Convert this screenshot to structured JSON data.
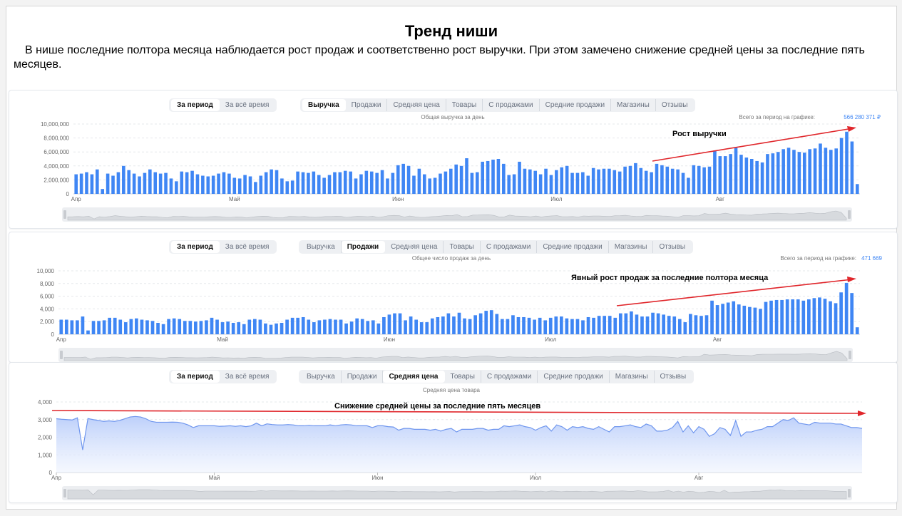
{
  "page": {
    "heading": "Тренд ниши",
    "intro": "В нише последние полтора месяца наблюдается рост продаж и соответственно рост выручки. При этом замечено снижение средней цены за последние пять месяцев."
  },
  "tabs_period": [
    "За период",
    "За всё время"
  ],
  "tabs_metrics": [
    "Выручка",
    "Продажи",
    "Средняя цена",
    "Товары",
    "С продажами",
    "Средние продажи",
    "Магазины",
    "Отзывы"
  ],
  "colors": {
    "bar": "#3f86f4",
    "line": "#6f96ee",
    "area": "#c9d8fb",
    "arrow": "#e0262b",
    "total": "#3f86f4"
  },
  "charts": [
    {
      "active_metric": "Выручка",
      "subtitle": "Общая выручка за день",
      "total_label": "Всего за период на графике:",
      "total_value": "566 280 371 ₽",
      "annotation": "Рост выручки"
    },
    {
      "active_metric": "Продажи",
      "subtitle": "Общее число продаж за день",
      "total_label": "Всего за период на графике:",
      "total_value": "471 669",
      "annotation": "Явный рост продаж за последние полтора месяца"
    },
    {
      "active_metric": "Средняя цена",
      "subtitle": "Средняя цена товара",
      "annotation": "Снижение средней цены за последние пять месяцев"
    }
  ],
  "chart_data": [
    {
      "type": "bar",
      "ylim": [
        0,
        10000000
      ],
      "yticks": [
        0,
        2000000,
        4000000,
        6000000,
        8000000,
        10000000
      ],
      "ytick_labels": [
        "0",
        "2,000,000",
        "4,000,000",
        "6,000,000",
        "8,000,000",
        "10,000,000"
      ],
      "xtick_labels": [
        "Апр",
        "Май",
        "Июн",
        "Июл",
        "Авг"
      ],
      "xtick_days": [
        0,
        30,
        61,
        91,
        122
      ],
      "values": [
        2800000,
        2900000,
        3100000,
        2800000,
        3500000,
        700000,
        2900000,
        2600000,
        3100000,
        4000000,
        3400000,
        2900000,
        2500000,
        3000000,
        3500000,
        3100000,
        2900000,
        3000000,
        2200000,
        1800000,
        3200000,
        3100000,
        3300000,
        2800000,
        2600000,
        2500000,
        2600000,
        2900000,
        3100000,
        2900000,
        2300000,
        2200000,
        2700000,
        2500000,
        1700000,
        2600000,
        3100000,
        3500000,
        3400000,
        2200000,
        1800000,
        1900000,
        3200000,
        3100000,
        3000000,
        3200000,
        2700000,
        2300000,
        2700000,
        3100000,
        3100000,
        3300000,
        3200000,
        2200000,
        2800000,
        3300000,
        3200000,
        3000000,
        3400000,
        2200000,
        3000000,
        4100000,
        4300000,
        4000000,
        2600000,
        3600000,
        2800000,
        2200000,
        2300000,
        2900000,
        3200000,
        3600000,
        4200000,
        4000000,
        5100000,
        3000000,
        3100000,
        4600000,
        4700000,
        4900000,
        5000000,
        4300000,
        2700000,
        2800000,
        4600000,
        3600000,
        3500000,
        3300000,
        2800000,
        3600000,
        2700000,
        3400000,
        3800000,
        4000000,
        3000000,
        3000000,
        3100000,
        2600000,
        3700000,
        3500000,
        3600000,
        3600000,
        3400000,
        3200000,
        3900000,
        4000000,
        4400000,
        3700000,
        3300000,
        3100000,
        4300000,
        4100000,
        3900000,
        3600000,
        3500000,
        3000000,
        2300000,
        4100000,
        4000000,
        3800000,
        3900000,
        6200000,
        5400000,
        5400000,
        5700000,
        6600000,
        5600000,
        5200000,
        5000000,
        4700000,
        4500000,
        5700000,
        5800000,
        6000000,
        6400000,
        6600000,
        6300000,
        6000000,
        5900000,
        6400000,
        6500000,
        7200000,
        6600000,
        6300000,
        6500000,
        8000000,
        8900000,
        7500000,
        1400000
      ]
    },
    {
      "type": "bar",
      "ylim": [
        0,
        10000
      ],
      "yticks": [
        0,
        2000,
        4000,
        6000,
        8000,
        10000
      ],
      "ytick_labels": [
        "0",
        "2,000",
        "4,000",
        "6,000",
        "8,000",
        "10,000"
      ],
      "xtick_labels": [
        "Апр",
        "Май",
        "Июн",
        "Июл",
        "Авг"
      ],
      "xtick_days": [
        0,
        30,
        61,
        91,
        122
      ],
      "values": [
        2300,
        2300,
        2200,
        2200,
        2800,
        600,
        2100,
        2100,
        2200,
        2600,
        2600,
        2300,
        1900,
        2400,
        2500,
        2300,
        2200,
        2100,
        1800,
        1600,
        2400,
        2500,
        2400,
        2100,
        2100,
        2000,
        2100,
        2200,
        2600,
        2300,
        1900,
        2000,
        1800,
        1900,
        1600,
        2300,
        2400,
        2300,
        1700,
        1500,
        1700,
        1800,
        2300,
        2600,
        2600,
        2700,
        2300,
        1900,
        2200,
        2300,
        2400,
        2300,
        2300,
        1700,
        2000,
        2500,
        2400,
        2100,
        2200,
        1700,
        2700,
        3100,
        3300,
        3300,
        2200,
        2800,
        2300,
        1900,
        1900,
        2500,
        2700,
        2800,
        3300,
        2800,
        3400,
        2500,
        2400,
        3000,
        3300,
        3700,
        3800,
        3200,
        2400,
        2400,
        3000,
        2700,
        2700,
        2600,
        2300,
        2600,
        2200,
        2600,
        2800,
        2800,
        2500,
        2400,
        2400,
        2200,
        2700,
        2600,
        2900,
        2900,
        2900,
        2600,
        3300,
        3300,
        3600,
        3100,
        2800,
        2800,
        3400,
        3300,
        3100,
        2900,
        2800,
        2400,
        1900,
        3200,
        3000,
        2900,
        3000,
        5300,
        4600,
        4800,
        5000,
        5200,
        4700,
        4500,
        4300,
        4200,
        4000,
        5100,
        5300,
        5400,
        5400,
        5500,
        5500,
        5500,
        5300,
        5500,
        5700,
        5800,
        5600,
        5200,
        4900,
        6600,
        8100,
        6500,
        1100
      ]
    },
    {
      "type": "area",
      "ylim": [
        0,
        4000
      ],
      "yticks": [
        0,
        1000,
        2000,
        3000,
        4000
      ],
      "ytick_labels": [
        "0",
        "1,000",
        "2,000",
        "3,000",
        "4,000"
      ],
      "xtick_labels": [
        "Апр",
        "Май",
        "Июн",
        "Июл",
        "Авг"
      ],
      "xtick_days": [
        0,
        30,
        61,
        91,
        122
      ],
      "values": [
        3050,
        3020,
        3000,
        2980,
        3100,
        1280,
        3060,
        3000,
        2950,
        2900,
        2930,
        2900,
        2950,
        3050,
        3150,
        3180,
        3150,
        3050,
        2900,
        2850,
        2850,
        2850,
        2860,
        2850,
        2800,
        2700,
        2550,
        2650,
        2650,
        2650,
        2650,
        2620,
        2630,
        2650,
        2620,
        2650,
        2600,
        2650,
        2800,
        2650,
        2760,
        2720,
        2700,
        2700,
        2720,
        2700,
        2650,
        2650,
        2680,
        2650,
        2650,
        2650,
        2700,
        2650,
        2700,
        2720,
        2700,
        2650,
        2650,
        2650,
        2550,
        2650,
        2650,
        2600,
        2580,
        2400,
        2500,
        2500,
        2450,
        2450,
        2450,
        2400,
        2450,
        2350,
        2450,
        2500,
        2300,
        2450,
        2450,
        2450,
        2500,
        2500,
        2400,
        2450,
        2450,
        2650,
        2600,
        2650,
        2700,
        2600,
        2550,
        2400,
        2550,
        2650,
        2350,
        2700,
        2600,
        2400,
        2600,
        2550,
        2600,
        2500,
        2450,
        2600,
        2450,
        2300,
        2600,
        2600,
        2650,
        2700,
        2600,
        2550,
        2750,
        2650,
        2350,
        2350,
        2400,
        2550,
        2900,
        2300,
        2650,
        2250,
        2600,
        2450,
        2050,
        2200,
        2550,
        2450,
        2100,
        2950,
        2050,
        2300,
        2300,
        2400,
        2450,
        2600,
        2600,
        2800,
        3000,
        2950,
        3100,
        2800,
        2750,
        2700,
        2850,
        2800,
        2800,
        2800,
        2750,
        2750,
        2650,
        2550,
        2550,
        2500
      ]
    }
  ]
}
